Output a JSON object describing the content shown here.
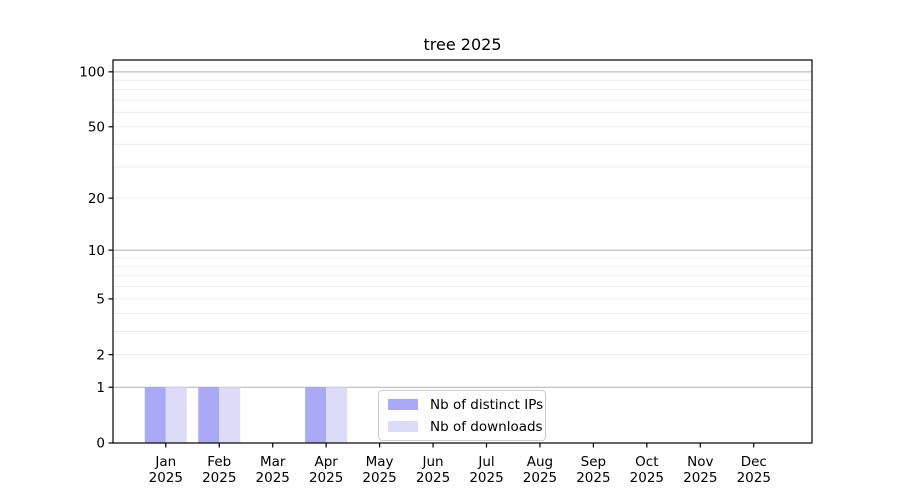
{
  "chart_data": {
    "type": "bar",
    "title": "tree 2025",
    "categories": [
      "Jan",
      "Feb",
      "Mar",
      "Apr",
      "May",
      "Jun",
      "Jul",
      "Aug",
      "Sep",
      "Oct",
      "Nov",
      "Dec"
    ],
    "year_label": "2025",
    "series": [
      {
        "name": "Nb of distinct IPs",
        "color": "#a9a9f5",
        "values": [
          1,
          1,
          0,
          1,
          0,
          0,
          0,
          0,
          0,
          0,
          0,
          0
        ]
      },
      {
        "name": "Nb of downloads",
        "color": "#dcdcf8",
        "values": [
          1,
          1,
          0,
          1,
          0,
          0,
          0,
          0,
          0,
          0,
          0,
          0
        ]
      }
    ],
    "xlabel": "",
    "ylabel": "",
    "yscale": "log1p",
    "ylim": [
      0,
      116
    ],
    "yticks": [
      0,
      1,
      2,
      5,
      10,
      20,
      50,
      100
    ],
    "major_gridlines": [
      1,
      10,
      100
    ],
    "minor_gridlines": [
      2,
      3,
      4,
      5,
      6,
      7,
      8,
      9,
      20,
      30,
      40,
      50,
      60,
      70,
      80,
      90
    ],
    "grid": true,
    "legend_position": "lower-center-inside",
    "colors": {
      "major_grid": "#b1b1b1",
      "minor_grid": "#ececec",
      "spine": "#000000",
      "tick_label": "#000000"
    }
  }
}
